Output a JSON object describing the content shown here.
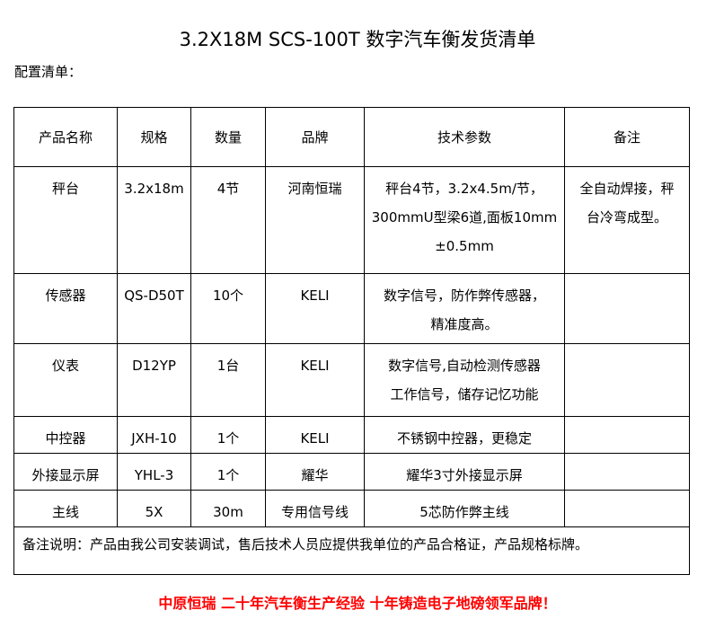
{
  "title": "3.2X18M SCS-100T 数字汽车衡发货清单",
  "subtitle": "配置清单：",
  "headers": [
    "产品名称",
    "规格",
    "数量",
    "品牌",
    "技术参数",
    "备注"
  ],
  "rows": [
    {
      "name": "秤台",
      "spec": "3.2x18m",
      "qty": "4节",
      "brand": "河南恒瑞",
      "tech": [
        "秤台4节，3.2x4.5m/节，",
        "300mmU型梁6道,面板10mm",
        "±0.5mm"
      ],
      "note": [
        "全自动焊接，秤",
        "台冷弯成型。"
      ]
    },
    {
      "name": "传感器",
      "spec": "QS-D50T",
      "qty": "10个",
      "brand": "KELI",
      "tech": [
        "数字信号，防作弊传感器，",
        "精准度高。"
      ],
      "note": []
    },
    {
      "name": "仪表",
      "spec": "D12YP",
      "qty": "1台",
      "brand": "KELI",
      "tech": [
        "数字信号,自动检测传感器",
        "工作信号，储存记忆功能"
      ],
      "note": []
    },
    {
      "name": "中控器",
      "spec": "JXH-10",
      "qty": "1个",
      "brand": "KELI",
      "tech": [
        "不锈钢中控器，更稳定"
      ],
      "note": []
    },
    {
      "name": "外接显示屏",
      "spec": "YHL-3",
      "qty": "1个",
      "brand": "耀华",
      "tech": [
        "耀华3寸外接显示屏"
      ],
      "note": []
    },
    {
      "name": "主线",
      "spec": "5X",
      "qty": "30m",
      "brand": "专用信号线",
      "tech": [
        "5芯防作弊主线"
      ],
      "note": []
    }
  ],
  "remark": "备注说明：产品由我公司安装调试，售后技术人员应提供我单位的产品合格证，产品规格标牌。",
  "slogan": "中原恒瑞 二十年汽车衡生产经验 十年铸造电子地磅领军品牌！",
  "colors": {
    "slogan": "#ff0000"
  }
}
